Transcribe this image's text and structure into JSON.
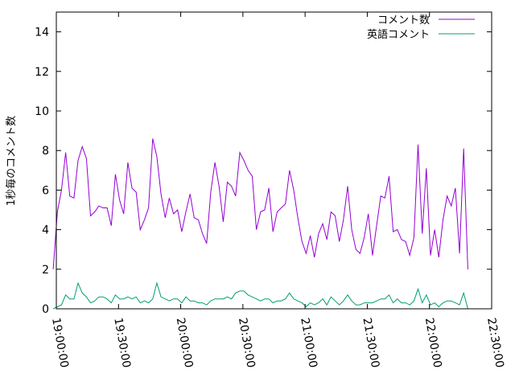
{
  "chart_data": {
    "type": "line",
    "title": "",
    "xlabel": "",
    "ylabel": "1秒毎のコメント数",
    "ylim": [
      0,
      15
    ],
    "yticks": [
      0,
      2,
      4,
      6,
      8,
      10,
      12,
      14
    ],
    "xlim": [
      "19:00:00",
      "22:30:00"
    ],
    "xticks": [
      "19:00:00",
      "19:30:00",
      "20:00:00",
      "20:30:00",
      "21:00:00",
      "21:30:00",
      "22:00:00",
      "22:30:00"
    ],
    "x_start": "18:58:30",
    "x_step_seconds": 120,
    "grid": false,
    "legend_position": "top-right",
    "series": [
      {
        "name": "コメント数",
        "color": "#9400d3",
        "values": [
          2.0,
          4.9,
          6.0,
          7.9,
          5.7,
          5.6,
          7.5,
          8.2,
          7.6,
          4.7,
          4.9,
          5.2,
          5.1,
          5.1,
          4.2,
          6.8,
          5.5,
          4.8,
          7.4,
          6.1,
          5.9,
          4.0,
          4.5,
          5.1,
          8.6,
          7.7,
          5.8,
          4.6,
          5.6,
          4.8,
          5.0,
          3.9,
          4.9,
          5.8,
          4.6,
          4.5,
          3.8,
          3.3,
          5.9,
          7.4,
          6.2,
          4.4,
          6.4,
          6.2,
          5.7,
          7.9,
          7.5,
          7.0,
          6.7,
          4.0,
          4.9,
          5.0,
          6.1,
          3.9,
          4.9,
          5.1,
          5.3,
          7.0,
          6.0,
          4.6,
          3.4,
          2.8,
          3.7,
          2.6,
          3.8,
          4.3,
          3.5,
          4.9,
          4.7,
          3.4,
          4.5,
          6.2,
          4.0,
          3.0,
          2.8,
          3.6,
          4.8,
          2.7,
          4.2,
          5.7,
          5.6,
          6.7,
          3.9,
          4.0,
          3.5,
          3.4,
          2.7,
          3.6,
          8.3,
          3.8,
          7.1,
          2.7,
          4.0,
          2.6,
          4.5,
          5.7,
          5.2,
          6.1,
          2.8,
          8.1,
          2.0
        ]
      },
      {
        "name": "英語コメント",
        "color": "#009e73",
        "values": [
          0.0,
          0.1,
          0.2,
          0.7,
          0.5,
          0.5,
          1.3,
          0.8,
          0.6,
          0.3,
          0.4,
          0.6,
          0.6,
          0.5,
          0.3,
          0.7,
          0.5,
          0.5,
          0.6,
          0.5,
          0.6,
          0.3,
          0.4,
          0.3,
          0.5,
          1.3,
          0.6,
          0.5,
          0.4,
          0.5,
          0.5,
          0.3,
          0.6,
          0.4,
          0.4,
          0.3,
          0.3,
          0.2,
          0.4,
          0.5,
          0.5,
          0.5,
          0.6,
          0.5,
          0.8,
          0.9,
          0.9,
          0.7,
          0.6,
          0.5,
          0.4,
          0.5,
          0.5,
          0.3,
          0.4,
          0.4,
          0.5,
          0.8,
          0.5,
          0.4,
          0.3,
          0.1,
          0.3,
          0.2,
          0.3,
          0.5,
          0.2,
          0.6,
          0.4,
          0.2,
          0.4,
          0.7,
          0.4,
          0.2,
          0.2,
          0.3,
          0.3,
          0.3,
          0.4,
          0.5,
          0.5,
          0.7,
          0.3,
          0.5,
          0.3,
          0.3,
          0.2,
          0.4,
          1.0,
          0.3,
          0.7,
          0.2,
          0.3,
          0.1,
          0.3,
          0.4,
          0.4,
          0.3,
          0.2,
          0.8,
          0.0
        ]
      }
    ]
  }
}
